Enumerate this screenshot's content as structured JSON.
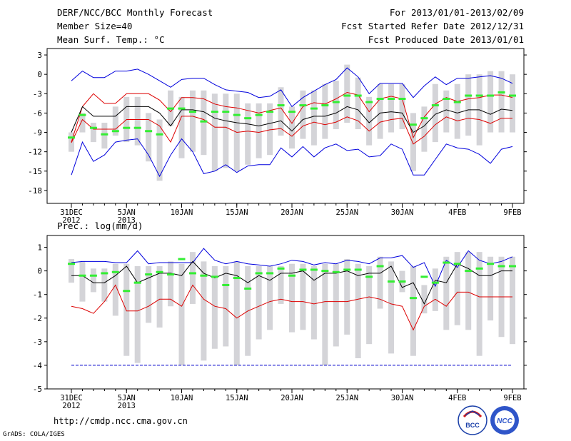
{
  "header": {
    "title": "DERF/NCC/BCC Monthly Forecast",
    "member_size": "Member Size=40",
    "variable": "Mean Surf. Temp.: °C",
    "period": "For 2013/01/01-2013/02/09",
    "started": "Fcst Started Refer Date 2012/12/31",
    "produced": "Fcst Produced Date 2013/01/01"
  },
  "footer": {
    "url": "http://cmdp.ncc.cma.gov.cn",
    "credit": "GrADS: COLA/IGES",
    "logo_left_text": "BCC",
    "logo_right_text": "NCC"
  },
  "colors": {
    "max_line": "#0000dd",
    "min_line": "#0000dd",
    "upper_line": "#dd0000",
    "lower_line": "#dd0000",
    "mean_line": "#000000",
    "obs_mark": "#33ee33",
    "box": "#d4d4d8",
    "threshold": "#0000cc"
  },
  "chart_data": [
    {
      "type": "line",
      "title": "Mean Surf. Temp.: °C",
      "x_ticks": [
        {
          "day": 0,
          "label": "31DEC",
          "sub": "2012"
        },
        {
          "day": 5,
          "label": "5JAN",
          "sub": "2013"
        },
        {
          "day": 10,
          "label": "10JAN",
          "sub": ""
        },
        {
          "day": 15,
          "label": "15JAN",
          "sub": ""
        },
        {
          "day": 20,
          "label": "20JAN",
          "sub": ""
        },
        {
          "day": 25,
          "label": "25JAN",
          "sub": ""
        },
        {
          "day": 30,
          "label": "30JAN",
          "sub": ""
        },
        {
          "day": 35,
          "label": "4FEB",
          "sub": ""
        },
        {
          "day": 40,
          "label": "9FEB",
          "sub": ""
        }
      ],
      "xlim": [
        0,
        40
      ],
      "ylim": [
        -20,
        4
      ],
      "y_ticks": [
        3,
        0,
        -3,
        -6,
        -9,
        -12,
        -15,
        -18
      ],
      "threshold": null,
      "series": [
        {
          "name": "max",
          "color": "#0000dd",
          "values": [
            -1,
            0.5,
            -0.5,
            -0.5,
            0.5,
            0.5,
            0.8,
            0,
            -1,
            -2,
            -0.8,
            -0.6,
            -0.6,
            -1.6,
            -2.4,
            -2.6,
            -2.8,
            -3.6,
            -3.4,
            -2.4,
            -5,
            -3.6,
            -2.6,
            -1.6,
            -0.8,
            1,
            -0.4,
            -3,
            -1.4,
            -1.4,
            -1.4,
            -3.6,
            -1.8,
            -0.4,
            -1.6,
            -0.6,
            -0.6,
            -0.4,
            -0.2,
            -0.6,
            -1.4
          ]
        },
        {
          "name": "upper",
          "color": "#dd0000",
          "values": [
            -10.5,
            -5,
            -3,
            -4.5,
            -4.5,
            -3,
            -3,
            -3,
            -4,
            -5.8,
            -3.6,
            -3.6,
            -3.8,
            -4.6,
            -5,
            -5.2,
            -5.6,
            -6,
            -5.6,
            -5.2,
            -7.6,
            -5,
            -4.4,
            -4.6,
            -3.8,
            -2.8,
            -3.2,
            -5.8,
            -3.8,
            -3.4,
            -3.8,
            -9.8,
            -6.6,
            -4.6,
            -3.6,
            -4.2,
            -3.8,
            -3.6,
            -3.2,
            -3.2,
            -3.6
          ]
        },
        {
          "name": "mean",
          "color": "#000000",
          "values": [
            -9,
            -5,
            -6.5,
            -6.5,
            -6.5,
            -5,
            -5,
            -5,
            -6,
            -8,
            -5.5,
            -5.5,
            -5.8,
            -6.8,
            -7.2,
            -7.5,
            -7.7,
            -8,
            -7.6,
            -7.2,
            -8.8,
            -7,
            -6.5,
            -6.5,
            -6,
            -5,
            -5.5,
            -7.5,
            -6,
            -5.8,
            -6,
            -9,
            -8,
            -6.2,
            -5.5,
            -6,
            -5.5,
            -5.5,
            -6.2,
            -5.4,
            -5.6
          ]
        },
        {
          "name": "lower",
          "color": "#dd0000",
          "values": [
            -10.6,
            -7,
            -8.5,
            -8.5,
            -8.5,
            -7,
            -7,
            -7,
            -8,
            -10.5,
            -6.5,
            -6.5,
            -7,
            -8.2,
            -8.2,
            -9,
            -8.8,
            -9,
            -8.6,
            -8.4,
            -9.6,
            -8,
            -7.4,
            -7.8,
            -7.4,
            -6.6,
            -7.2,
            -8.8,
            -7.4,
            -7,
            -6.8,
            -10.8,
            -9.6,
            -7.8,
            -6.6,
            -7.2,
            -6.8,
            -7,
            -7.6,
            -6.8,
            -6.8
          ]
        },
        {
          "name": "min",
          "color": "#0000dd",
          "values": [
            -15.6,
            -10.5,
            -13.5,
            -12.5,
            -10.5,
            -10.2,
            -10,
            -12.5,
            -15.8,
            -12.5,
            -10,
            -12,
            -15.4,
            -15,
            -14,
            -15.2,
            -14.2,
            -14,
            -14,
            -11.4,
            -12.8,
            -11.2,
            -12.8,
            -11.4,
            -10.8,
            -11.8,
            -11.6,
            -12.8,
            -12.6,
            -10.8,
            -11.6,
            -15.6,
            -15.6,
            -13.2,
            -10.8,
            -11.4,
            -11.6,
            -12.4,
            -13.8,
            -11.6,
            -11.2
          ]
        },
        {
          "name": "obs",
          "color": "#33ee33",
          "values": [
            -9.8,
            -6.3,
            -8.3,
            -9.3,
            -8.8,
            -8.3,
            -8.3,
            -8.8,
            -9.3,
            -5.3,
            -5.3,
            -5.8,
            -7.3,
            -5.8,
            -5.8,
            -6.3,
            -6.8,
            -6.3,
            -5.8,
            -4.8,
            -5.8,
            -4.8,
            -5.3,
            -4.8,
            -4.3,
            -3.3,
            -3.3,
            -4.3,
            -3.8,
            -3.8,
            -3.8,
            -7.8,
            -6.8,
            -4.8,
            -3.8,
            -4.3,
            -3.3,
            -3.3,
            -3.3,
            -2.8,
            -3.3
          ]
        },
        {
          "name": "box_top",
          "values": [
            -9,
            -6,
            -7.5,
            -7.5,
            -5,
            -3.5,
            -3.5,
            -6,
            -7,
            -2.5,
            -3.5,
            -2.5,
            -2.5,
            -3,
            -3,
            -3,
            -4.5,
            -4.5,
            -4.5,
            -2,
            -5,
            -2.5,
            -2.5,
            -1.5,
            -1,
            1.5,
            -0.5,
            -3.5,
            -1.5,
            -1.5,
            -1.5,
            -6,
            -5,
            -1.5,
            -2.5,
            -1.5,
            0,
            0,
            0.5,
            0.5,
            0
          ]
        },
        {
          "name": "box_bottom",
          "values": [
            -12,
            -9,
            -10.5,
            -11.5,
            -9.5,
            -10.5,
            -11,
            -13.5,
            -16.5,
            -8,
            -13,
            -12,
            -12.5,
            -15,
            -14.5,
            -15,
            -14,
            -13,
            -12.5,
            -9.5,
            -11.5,
            -10,
            -11,
            -10,
            -8.5,
            -7.5,
            -8.5,
            -11,
            -10,
            -9,
            -8.5,
            -15,
            -12,
            -10.5,
            -9,
            -10,
            -9.5,
            -11,
            -9,
            -9,
            -9
          ]
        }
      ]
    },
    {
      "type": "line",
      "title": "Prec.: log(mm/d)",
      "x_ticks": [
        {
          "day": 0,
          "label": "31DEC",
          "sub": "2012"
        },
        {
          "day": 5,
          "label": "5JAN",
          "sub": "2013"
        },
        {
          "day": 10,
          "label": "10JAN",
          "sub": ""
        },
        {
          "day": 15,
          "label": "15JAN",
          "sub": ""
        },
        {
          "day": 20,
          "label": "20JAN",
          "sub": ""
        },
        {
          "day": 25,
          "label": "25JAN",
          "sub": ""
        },
        {
          "day": 30,
          "label": "30JAN",
          "sub": ""
        },
        {
          "day": 35,
          "label": "4FEB",
          "sub": ""
        },
        {
          "day": 40,
          "label": "9FEB",
          "sub": ""
        }
      ],
      "xlim": [
        0,
        40
      ],
      "ylim": [
        -5,
        1.5
      ],
      "y_ticks": [
        1,
        0,
        -1,
        -2,
        -3,
        -4,
        -5
      ],
      "threshold": -4,
      "series": [
        {
          "name": "max",
          "color": "#0000dd",
          "values": [
            0.35,
            0.4,
            0.4,
            0.4,
            0.35,
            0.35,
            0.85,
            0.3,
            0.35,
            0.35,
            0.35,
            0.35,
            0.95,
            0.45,
            0.3,
            0.4,
            0.3,
            0.25,
            0.2,
            0.3,
            0.45,
            0.4,
            0.25,
            0.35,
            0.3,
            0.45,
            0.4,
            0.3,
            0.55,
            0.55,
            0.65,
            0.15,
            0.35,
            -0.65,
            0.45,
            0.15,
            0.85,
            0.45,
            0.3,
            0.4,
            0.6
          ]
        },
        {
          "name": "mean",
          "color": "#000000",
          "values": [
            -0.2,
            -0.2,
            -0.5,
            -0.5,
            -0.2,
            0.2,
            -0.5,
            -0.3,
            -0.1,
            -0.1,
            -0.2,
            0.4,
            -0.1,
            -0.3,
            -0.1,
            -0.2,
            -0.5,
            -0.2,
            -0.4,
            -0.1,
            -0.1,
            0,
            -0.4,
            -0.1,
            -0.1,
            0,
            -0.2,
            -0.1,
            -0.1,
            0.2,
            -0.7,
            -0.5,
            -1.4,
            -0.4,
            -0.5,
            0.3,
            0.1,
            -0.2,
            -0.2,
            0,
            0
          ]
        },
        {
          "name": "lower",
          "color": "#dd0000",
          "values": [
            -1.5,
            -1.6,
            -1.8,
            -1.3,
            -0.6,
            -1.7,
            -1.7,
            -1.5,
            -1.2,
            -1.2,
            -1.5,
            -0.6,
            -1.2,
            -1.5,
            -1.6,
            -2,
            -1.7,
            -1.5,
            -1.3,
            -1.2,
            -1.3,
            -1.3,
            -1.4,
            -1.3,
            -1.3,
            -1.3,
            -1.2,
            -1.1,
            -1.2,
            -1.4,
            -1.5,
            -2.5,
            -1.5,
            -1.2,
            -1.5,
            -0.9,
            -0.9,
            -1.1,
            -1.1,
            -1.1,
            -1.1
          ]
        },
        {
          "name": "obs",
          "color": "#33ee33",
          "values": [
            0.3,
            -0.2,
            -0.2,
            -0.1,
            -0.05,
            -0.85,
            -0.5,
            -0.15,
            -0.05,
            -0.15,
            0.5,
            -0.1,
            -0.2,
            -0.25,
            -0.6,
            -0.3,
            -0.75,
            -0.1,
            -0.1,
            0.1,
            -0.2,
            0.05,
            0.05,
            0,
            -0.05,
            0.05,
            0.05,
            -0.25,
            0.2,
            -0.45,
            -0.45,
            -1.15,
            -0.25,
            -0.5,
            0.35,
            0.3,
            0,
            0.1,
            0.3,
            0.2,
            0.2
          ]
        },
        {
          "name": "box_top",
          "values": [
            0.5,
            0.4,
            0.1,
            0.1,
            0.3,
            0.3,
            0.2,
            0.2,
            0.2,
            0.4,
            0.3,
            0.8,
            0.4,
            0.2,
            0.2,
            0.4,
            0.2,
            0.2,
            0.2,
            0.2,
            0.3,
            0.3,
            0.2,
            0.3,
            0.3,
            0.5,
            0.3,
            0.2,
            0.6,
            0.4,
            0,
            0.2,
            -0.6,
            0.1,
            0.6,
            0.8,
            0.8,
            0.8,
            0.6,
            0.6,
            0.6
          ]
        },
        {
          "name": "box_bottom",
          "values": [
            -0.5,
            -1.3,
            -0.9,
            -1.3,
            -1.9,
            -3.6,
            -3.9,
            -2.2,
            -2.4,
            -1.5,
            -4,
            -1.4,
            -3.8,
            -3.3,
            -3.2,
            -4,
            -3.6,
            -2.9,
            -2.5,
            -1.4,
            -2.6,
            -2.5,
            -2.9,
            -4,
            -3.2,
            -2.7,
            -3.7,
            -3.1,
            -1.6,
            -3.5,
            -0.9,
            -3.6,
            -1.8,
            -1.7,
            -2.5,
            -2.3,
            -2.5,
            -3.6,
            -2.1,
            -2.8,
            -3.1
          ]
        }
      ]
    }
  ]
}
